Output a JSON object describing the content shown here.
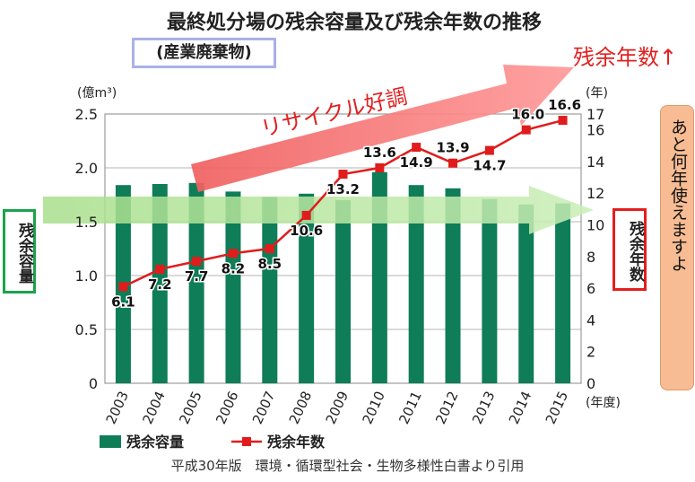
{
  "chart_data": {
    "type": "bar+line",
    "title": "最終処分場の残余容量及び残余年数の推移",
    "subtitle": "(産業廃棄物)",
    "categories": [
      "2003",
      "2004",
      "2005",
      "2006",
      "2007",
      "2008",
      "2009",
      "2010",
      "2011",
      "2012",
      "2013",
      "2014",
      "2015"
    ],
    "series": [
      {
        "name": "残余容量",
        "type": "bar",
        "axis": "left",
        "values": [
          1.84,
          1.85,
          1.86,
          1.78,
          1.73,
          1.76,
          1.7,
          1.96,
          1.84,
          1.81,
          1.71,
          1.66,
          1.67
        ]
      },
      {
        "name": "残余年数",
        "type": "line",
        "axis": "right",
        "values": [
          6.1,
          7.2,
          7.7,
          8.2,
          8.5,
          10.6,
          13.2,
          13.6,
          14.9,
          13.9,
          14.7,
          16.0,
          16.6
        ]
      }
    ],
    "data_labels": [
      "6.1",
      "7.2",
      "7.7",
      "8.2",
      "8.5",
      "10.6",
      "13.2",
      "13.6",
      "14.9",
      "13.9",
      "14.7",
      "16.0",
      "16.6"
    ],
    "y_left": {
      "unit": "(億m³)",
      "ylim": [
        0,
        2.5
      ],
      "ticks": [
        "0",
        "0.5",
        "1.0",
        "1.5",
        "2.0",
        "2.5"
      ],
      "tick_values": [
        0,
        0.5,
        1.0,
        1.5,
        2.0,
        2.5
      ]
    },
    "y_right": {
      "unit": "(年)",
      "ylim": [
        0,
        17
      ],
      "ticks": [
        "0",
        "2",
        "4",
        "6",
        "8",
        "10",
        "12",
        "14",
        "16",
        "17"
      ],
      "tick_values": [
        0,
        2,
        4,
        6,
        8,
        10,
        12,
        14,
        16,
        17
      ]
    },
    "x_unit": "(年度)",
    "legend": [
      "残余容量",
      "残余年数"
    ],
    "legend_position": "bottom-left",
    "grid": true
  },
  "annotations": {
    "red_arrow_text": "リサイクル好調",
    "red_arrow_tip": "残余年数↑",
    "left_box": "残余容量",
    "right_box": "残余年数",
    "callout": "あと何年使えますよ"
  },
  "caption": "平成30年版　環境・循環型社会・生物多様性白書より引用",
  "colors": {
    "bar": "#0e7d58",
    "line": "#e01c1c",
    "green_arrow": "#9fdc83",
    "red_arrow": "#f47878",
    "callout": "#f7bc93",
    "left_box_border": "#1aa34a",
    "right_box_border": "#e41e1e",
    "subtitle_border": "#aab0e8"
  }
}
